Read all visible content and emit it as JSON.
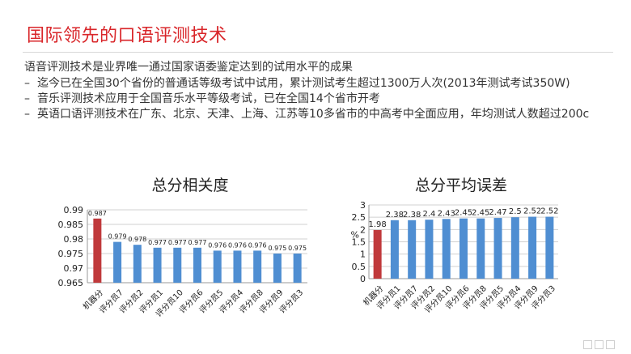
{
  "slide": {
    "title": "国际领先的口语评测技术",
    "lead": "语音评测技术是业界唯一通过国家语委鉴定达到的试用水平的成果",
    "bullets": [
      "迄今已在全国30个省份的普通话等级考试中试用，累计测试考生超过1300万人次(2013年测试考试350W)",
      "音乐评测技术应用于全国音乐水平等级考试，已在全国14个省市开考",
      "英语口语评测技术在广东、北京、天津、上海、江苏等10多省市的中高考中全面应用，年均测试人数超过200c"
    ],
    "bullet_marker": "–"
  },
  "colors": {
    "title": "#d9262a",
    "bar_blue": "#4f8ed2",
    "bar_red": "#c0393b"
  },
  "chart_data": [
    {
      "type": "bar",
      "title": "总分相关度",
      "categories": [
        "机器分",
        "评分员7",
        "评分员2",
        "评分员1",
        "评分员10",
        "评分员6",
        "评分员5",
        "评分员4",
        "评分员8",
        "评分员9",
        "评分员3"
      ],
      "values": [
        0.987,
        0.979,
        0.978,
        0.977,
        0.977,
        0.977,
        0.976,
        0.976,
        0.976,
        0.975,
        0.975
      ],
      "value_labels": [
        "0.987",
        "0.979",
        "0.978",
        "0.977",
        "0.977",
        "0.977",
        "0.976",
        "0.976",
        "0.976",
        "0.975",
        "0.975"
      ],
      "highlight_index": 0,
      "ylim": [
        0.965,
        0.99
      ],
      "yticks": [
        "0.965",
        "0.97",
        "0.975",
        "0.98",
        "0.985",
        "0.99"
      ],
      "ylabel": "",
      "grid": true
    },
    {
      "type": "bar",
      "title": "总分平均误差",
      "categories": [
        "机器分",
        "评分员1",
        "评分员7",
        "评分员2",
        "评分员10",
        "评分员6",
        "评分员8",
        "评分员5",
        "评分员4",
        "评分员9",
        "评分员3"
      ],
      "values": [
        1.98,
        2.38,
        2.38,
        2.4,
        2.43,
        2.45,
        2.45,
        2.47,
        2.5,
        2.52,
        2.52
      ],
      "value_labels": [
        "1.98",
        "2.38",
        "2.38",
        "2.4",
        "2.43",
        "2.45",
        "2.45",
        "2.47",
        "2.5",
        "2.52",
        "2.52"
      ],
      "highlight_index": 0,
      "ylim": [
        0,
        3
      ],
      "yticks": [
        "0",
        "0.5",
        "1",
        "1.5",
        "2",
        "2.5",
        "3"
      ],
      "ylabel": "%",
      "grid": true
    }
  ]
}
